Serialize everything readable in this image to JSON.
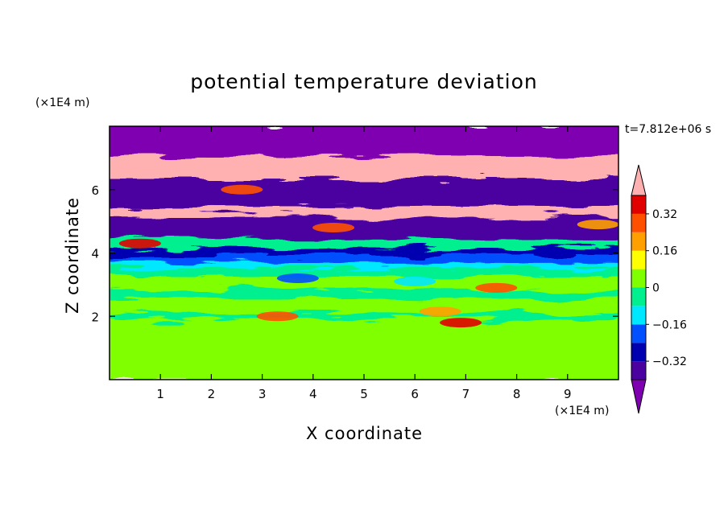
{
  "chart_data": {
    "type": "heatmap",
    "title": "potential temperature deviation",
    "xlabel": "X coordinate",
    "ylabel": "Z coordinate",
    "x_unit": "(×1E4 m)",
    "z_unit": "(×1E4 m)",
    "time_label": "t=7.812e+06 s",
    "xlim": [
      0,
      10
    ],
    "ylim": [
      0,
      8
    ],
    "x_ticks": [
      1,
      2,
      3,
      4,
      5,
      6,
      7,
      8,
      9
    ],
    "y_ticks": [
      2,
      4,
      6
    ],
    "colorbar": {
      "levels": [
        -0.4,
        -0.32,
        -0.24,
        -0.16,
        -0.08,
        0,
        0.08,
        0.16,
        0.24,
        0.32,
        0.4
      ],
      "tick_labels": [
        "0.32",
        "0.16",
        "0",
        "−0.16",
        "−0.32"
      ],
      "tick_values": [
        0.32,
        0.16,
        0,
        -0.16,
        -0.32
      ],
      "colors": [
        "#7f00b0",
        "#4b00a0",
        "#0000b0",
        "#0050ff",
        "#00e8ff",
        "#00f090",
        "#80ff00",
        "#ffff00",
        "#ffa000",
        "#ff5000",
        "#e00000",
        "#ffb0b0"
      ],
      "extend": "both"
    },
    "field_layers": [
      {
        "z_from": 0.0,
        "z_to": 1.95,
        "level": 0.04
      },
      {
        "z_from": 1.95,
        "z_to": 2.15,
        "level": -0.04
      },
      {
        "z_from": 2.15,
        "z_to": 2.6,
        "level": 0.04
      },
      {
        "z_from": 2.6,
        "z_to": 2.9,
        "level": -0.04
      },
      {
        "z_from": 2.9,
        "z_to": 3.3,
        "level": 0.04
      },
      {
        "z_from": 3.3,
        "z_to": 3.6,
        "level": -0.04
      },
      {
        "z_from": 3.6,
        "z_to": 3.75,
        "level": -0.12
      },
      {
        "z_from": 3.75,
        "z_to": 3.95,
        "level": -0.2
      },
      {
        "z_from": 3.95,
        "z_to": 4.2,
        "level": -0.28
      },
      {
        "z_from": 4.2,
        "z_to": 4.5,
        "level": -0.04
      },
      {
        "z_from": 4.5,
        "z_to": 5.2,
        "level": -0.36
      },
      {
        "z_from": 5.2,
        "z_to": 5.5,
        "level": 0.44
      },
      {
        "z_from": 5.5,
        "z_to": 6.4,
        "level": -0.36
      },
      {
        "z_from": 6.4,
        "z_to": 7.1,
        "level": 0.44
      },
      {
        "z_from": 7.1,
        "z_to": 8.0,
        "level": -0.44
      }
    ],
    "features": [
      {
        "x": 6.9,
        "z": 1.8,
        "level": 0.36
      },
      {
        "x": 6.5,
        "z": 2.15,
        "level": 0.2
      },
      {
        "x": 7.6,
        "z": 2.9,
        "level": 0.28
      },
      {
        "x": 3.3,
        "z": 2.0,
        "level": 0.28
      },
      {
        "x": 2.6,
        "z": 6.0,
        "level": 0.28
      },
      {
        "x": 4.4,
        "z": 4.8,
        "level": 0.28
      },
      {
        "x": 9.6,
        "z": 4.9,
        "level": 0.2
      },
      {
        "x": 0.6,
        "z": 4.3,
        "level": 0.36
      },
      {
        "x": 3.7,
        "z": 3.2,
        "level": -0.2
      },
      {
        "x": 6.0,
        "z": 3.1,
        "level": -0.12
      }
    ]
  }
}
